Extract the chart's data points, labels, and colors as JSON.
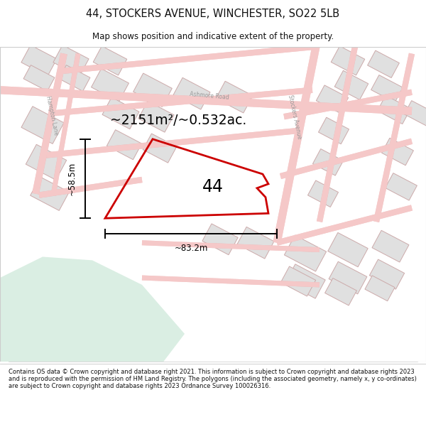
{
  "title": "44, STOCKERS AVENUE, WINCHESTER, SO22 5LB",
  "subtitle": "Map shows position and indicative extent of the property.",
  "footer": "Contains OS data © Crown copyright and database right 2021. This information is subject to Crown copyright and database rights 2023 and is reproduced with the permission of HM Land Registry. The polygons (including the associated geometry, namely x, y co-ordinates) are subject to Crown copyright and database rights 2023 Ordnance Survey 100026316.",
  "area_label": "~2151m²/~0.532ac.",
  "number_label": "44",
  "width_label": "~83.2m",
  "height_label": "~58.5m",
  "map_bg": "#ffffff",
  "road_fill": "#f5c8c8",
  "road_edge": "#e08888",
  "building_fill": "#e0e0e0",
  "building_edge": "#ccaaaa",
  "green_fill": "#daeee3",
  "plot_color": "#cc0000",
  "dim_color": "#000000",
  "title_color": "#111111",
  "footer_color": "#111111",
  "road_lw": 6,
  "plot_lw": 2.0
}
